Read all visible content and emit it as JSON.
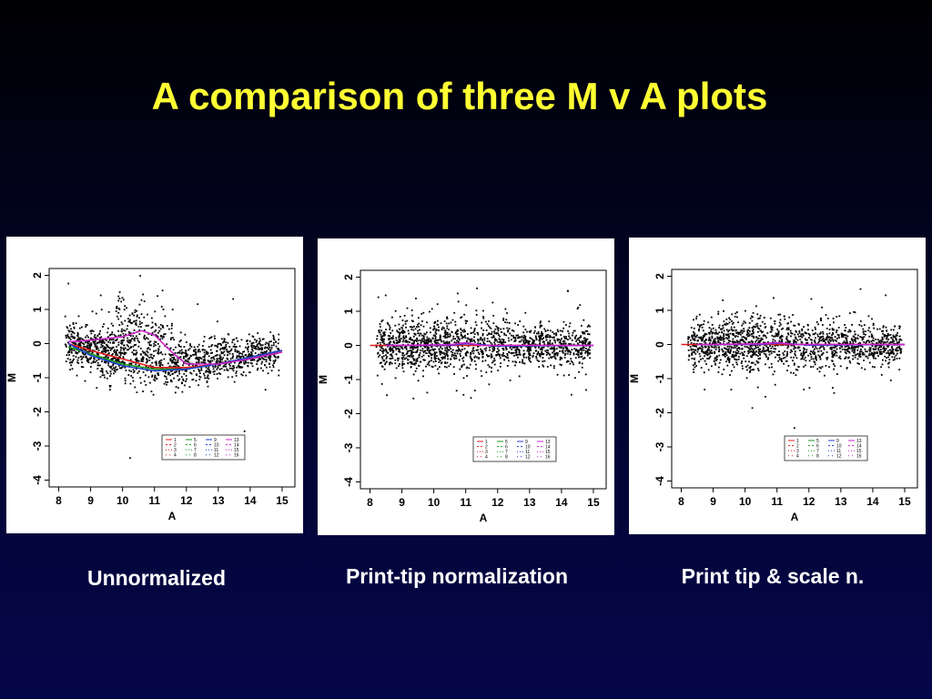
{
  "slide": {
    "title": "A comparison of three M v A plots"
  },
  "colors": {
    "background": "#02052e",
    "title": "#ffff33",
    "caption": "#ffffff",
    "points": "#000000"
  },
  "chart_data": [
    {
      "type": "scatter",
      "caption": "Unnormalized",
      "xlabel": "A",
      "ylabel": "M",
      "xlim": [
        7.7,
        15.4
      ],
      "ylim": [
        -4.2,
        2.2
      ],
      "xticks": [
        8,
        9,
        10,
        11,
        12,
        13,
        14,
        15
      ],
      "yticks": [
        -4,
        -3,
        -2,
        -1,
        0,
        1,
        2
      ],
      "legend": [
        "1",
        "2",
        "3",
        "4",
        "5",
        "6",
        "7",
        "8",
        "9",
        "10",
        "11",
        "12",
        "13",
        "14",
        "15",
        "16"
      ],
      "legend_position": "bottom-right",
      "series": [
        {
          "name": "1",
          "color": "#e41a1c",
          "x": [
            8.3,
            9.0,
            10.0,
            11.0,
            12.0,
            13.0,
            14.0,
            15.0
          ],
          "y": [
            0.0,
            -0.2,
            -0.45,
            -0.7,
            -0.7,
            -0.6,
            -0.4,
            -0.25
          ]
        },
        {
          "name": "5",
          "color": "#1a9a1a",
          "x": [
            8.3,
            9.0,
            10.0,
            11.0,
            12.0,
            13.0,
            14.0,
            15.0
          ],
          "y": [
            -0.1,
            -0.3,
            -0.6,
            -0.75,
            -0.75,
            -0.6,
            -0.4,
            -0.2
          ]
        },
        {
          "name": "9",
          "color": "#1f3fd0",
          "x": [
            8.3,
            9.0,
            10.0,
            11.0,
            12.0,
            13.0,
            14.0,
            15.0
          ],
          "y": [
            0.0,
            -0.35,
            -0.65,
            -0.8,
            -0.75,
            -0.6,
            -0.4,
            -0.2
          ]
        },
        {
          "name": "13",
          "color": "#cc22cc",
          "x": [
            8.3,
            9.0,
            10.0,
            10.6,
            11.0,
            11.6,
            12.0,
            13.0,
            14.0,
            15.0
          ],
          "y": [
            0.05,
            0.1,
            0.2,
            0.38,
            0.25,
            -0.3,
            -0.6,
            -0.6,
            -0.45,
            -0.25
          ]
        }
      ]
    },
    {
      "type": "scatter",
      "caption": "Print-tip normalization",
      "xlabel": "A",
      "ylabel": "M",
      "xlim": [
        7.7,
        15.4
      ],
      "ylim": [
        -4.2,
        2.2
      ],
      "xticks": [
        8,
        9,
        10,
        11,
        12,
        13,
        14,
        15
      ],
      "yticks": [
        -4,
        -3,
        -2,
        -1,
        0,
        1,
        2
      ],
      "legend": [
        "1",
        "2",
        "3",
        "4",
        "5",
        "6",
        "7",
        "8",
        "9",
        "10",
        "11",
        "12",
        "13",
        "14",
        "15",
        "16"
      ],
      "legend_position": "bottom-right",
      "series": [
        {
          "name": "1",
          "color": "#e41a1c",
          "x": [
            8.0,
            15.0
          ],
          "y": [
            0.0,
            0.0
          ]
        },
        {
          "name": "9",
          "color": "#1f3fd0",
          "x": [
            8.5,
            10.5,
            11.0,
            12.0,
            15.0
          ],
          "y": [
            0.0,
            0.0,
            0.05,
            -0.02,
            0.0
          ]
        },
        {
          "name": "13",
          "color": "#cc22cc",
          "x": [
            8.5,
            10.5,
            11.0,
            11.5,
            15.0
          ],
          "y": [
            0.0,
            0.02,
            0.08,
            0.0,
            0.0
          ]
        }
      ]
    },
    {
      "type": "scatter",
      "caption": "Print tip & scale n.",
      "xlabel": "A",
      "ylabel": "M",
      "xlim": [
        7.7,
        15.4
      ],
      "ylim": [
        -4.2,
        2.2
      ],
      "xticks": [
        8,
        9,
        10,
        11,
        12,
        13,
        14,
        15
      ],
      "yticks": [
        -4,
        -3,
        -2,
        -1,
        0,
        1,
        2
      ],
      "legend": [
        "1",
        "2",
        "3",
        "4",
        "5",
        "6",
        "7",
        "8",
        "9",
        "10",
        "11",
        "12",
        "13",
        "14",
        "15",
        "16"
      ],
      "legend_position": "bottom-right",
      "series": [
        {
          "name": "1",
          "color": "#e41a1c",
          "x": [
            8.0,
            15.0
          ],
          "y": [
            0.0,
            0.0
          ]
        },
        {
          "name": "9",
          "color": "#1f3fd0",
          "x": [
            8.5,
            10.5,
            11.0,
            12.0,
            15.0
          ],
          "y": [
            0.0,
            0.0,
            0.04,
            -0.02,
            0.0
          ]
        },
        {
          "name": "13",
          "color": "#cc22cc",
          "x": [
            8.5,
            10.5,
            11.0,
            11.5,
            15.0
          ],
          "y": [
            0.0,
            0.02,
            0.06,
            0.0,
            0.0
          ]
        }
      ]
    }
  ]
}
